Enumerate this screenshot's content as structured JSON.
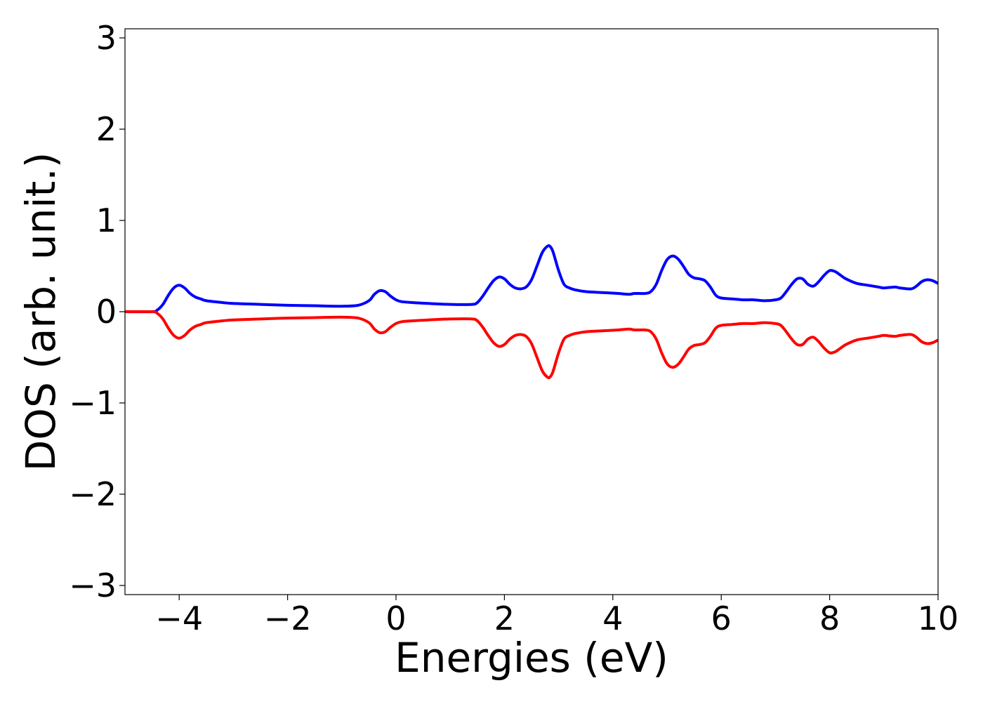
{
  "chart_data": {
    "type": "line",
    "title": "",
    "xlabel": "Energies (eV)",
    "ylabel": "DOS (arb. unit.)",
    "xlim": [
      -5,
      10
    ],
    "ylim": [
      -3.1,
      3.1
    ],
    "xticks": [
      -4,
      -2,
      0,
      2,
      4,
      6,
      8,
      10
    ],
    "xtick_labels": [
      "−4",
      "−2",
      "0",
      "2",
      "4",
      "6",
      "8",
      "10"
    ],
    "yticks": [
      -3,
      -2,
      -1,
      0,
      1,
      2,
      3
    ],
    "ytick_labels": [
      "−3",
      "−2",
      "−1",
      "0",
      "1",
      "2",
      "3"
    ],
    "grid": false,
    "legend": "none",
    "series": [
      {
        "color": "#0000ff",
        "x": [
          -5.0,
          -4.5,
          -4.4,
          -4.3,
          -4.2,
          -4.1,
          -4.0,
          -3.9,
          -3.8,
          -3.7,
          -3.6,
          -3.5,
          -3.2,
          -3.0,
          -2.5,
          -2.0,
          -1.5,
          -1.0,
          -0.7,
          -0.5,
          -0.4,
          -0.3,
          -0.2,
          -0.1,
          0.0,
          0.1,
          0.3,
          0.6,
          1.0,
          1.4,
          1.5,
          1.6,
          1.7,
          1.8,
          1.9,
          2.0,
          2.1,
          2.2,
          2.3,
          2.4,
          2.5,
          2.6,
          2.7,
          2.8,
          2.85,
          2.9,
          3.0,
          3.1,
          3.2,
          3.3,
          3.5,
          3.8,
          4.1,
          4.3,
          4.4,
          4.6,
          4.7,
          4.8,
          4.9,
          5.0,
          5.1,
          5.2,
          5.3,
          5.4,
          5.5,
          5.6,
          5.7,
          5.8,
          5.9,
          6.0,
          6.2,
          6.4,
          6.6,
          6.8,
          7.0,
          7.1,
          7.2,
          7.3,
          7.4,
          7.5,
          7.6,
          7.7,
          7.8,
          7.9,
          8.0,
          8.1,
          8.2,
          8.3,
          8.5,
          8.7,
          8.9,
          9.0,
          9.2,
          9.3,
          9.5,
          9.6,
          9.7,
          9.8,
          9.9,
          10.0
        ],
        "y": [
          0.0,
          0.0,
          0.02,
          0.08,
          0.18,
          0.26,
          0.29,
          0.26,
          0.2,
          0.16,
          0.14,
          0.12,
          0.1,
          0.09,
          0.08,
          0.07,
          0.065,
          0.06,
          0.07,
          0.12,
          0.19,
          0.23,
          0.22,
          0.17,
          0.13,
          0.11,
          0.1,
          0.09,
          0.08,
          0.08,
          0.1,
          0.17,
          0.26,
          0.34,
          0.38,
          0.36,
          0.3,
          0.26,
          0.25,
          0.27,
          0.35,
          0.5,
          0.65,
          0.72,
          0.71,
          0.65,
          0.45,
          0.3,
          0.26,
          0.24,
          0.22,
          0.21,
          0.2,
          0.19,
          0.2,
          0.2,
          0.22,
          0.3,
          0.45,
          0.57,
          0.61,
          0.58,
          0.5,
          0.41,
          0.37,
          0.36,
          0.34,
          0.27,
          0.18,
          0.15,
          0.14,
          0.13,
          0.13,
          0.12,
          0.13,
          0.15,
          0.22,
          0.3,
          0.36,
          0.36,
          0.3,
          0.28,
          0.33,
          0.4,
          0.45,
          0.44,
          0.4,
          0.36,
          0.31,
          0.29,
          0.27,
          0.26,
          0.27,
          0.26,
          0.25,
          0.28,
          0.33,
          0.35,
          0.34,
          0.31
        ]
      },
      {
        "color": "#ff0000",
        "x": [
          -5.0,
          -4.5,
          -4.4,
          -4.3,
          -4.2,
          -4.1,
          -4.0,
          -3.9,
          -3.8,
          -3.7,
          -3.6,
          -3.5,
          -3.2,
          -3.0,
          -2.5,
          -2.0,
          -1.5,
          -1.0,
          -0.7,
          -0.5,
          -0.4,
          -0.3,
          -0.2,
          -0.1,
          0.0,
          0.1,
          0.3,
          0.6,
          1.0,
          1.4,
          1.5,
          1.6,
          1.7,
          1.8,
          1.9,
          2.0,
          2.1,
          2.2,
          2.3,
          2.4,
          2.5,
          2.6,
          2.7,
          2.8,
          2.85,
          2.9,
          3.0,
          3.1,
          3.2,
          3.3,
          3.5,
          3.8,
          4.1,
          4.3,
          4.4,
          4.6,
          4.7,
          4.8,
          4.9,
          5.0,
          5.1,
          5.2,
          5.3,
          5.4,
          5.5,
          5.6,
          5.7,
          5.8,
          5.9,
          6.0,
          6.2,
          6.4,
          6.6,
          6.8,
          7.0,
          7.1,
          7.2,
          7.3,
          7.4,
          7.5,
          7.6,
          7.7,
          7.8,
          7.9,
          8.0,
          8.1,
          8.2,
          8.3,
          8.5,
          8.7,
          8.9,
          9.0,
          9.2,
          9.3,
          9.5,
          9.6,
          9.7,
          9.8,
          9.9,
          10.0
        ],
        "y": [
          0.0,
          0.0,
          -0.02,
          -0.08,
          -0.18,
          -0.26,
          -0.29,
          -0.26,
          -0.2,
          -0.16,
          -0.14,
          -0.12,
          -0.1,
          -0.09,
          -0.08,
          -0.07,
          -0.065,
          -0.06,
          -0.07,
          -0.12,
          -0.19,
          -0.23,
          -0.22,
          -0.17,
          -0.13,
          -0.11,
          -0.1,
          -0.09,
          -0.08,
          -0.08,
          -0.1,
          -0.17,
          -0.26,
          -0.34,
          -0.38,
          -0.36,
          -0.3,
          -0.26,
          -0.25,
          -0.27,
          -0.35,
          -0.5,
          -0.65,
          -0.72,
          -0.71,
          -0.65,
          -0.45,
          -0.3,
          -0.26,
          -0.24,
          -0.22,
          -0.21,
          -0.2,
          -0.19,
          -0.2,
          -0.2,
          -0.22,
          -0.3,
          -0.45,
          -0.57,
          -0.61,
          -0.58,
          -0.5,
          -0.41,
          -0.37,
          -0.36,
          -0.34,
          -0.27,
          -0.18,
          -0.15,
          -0.14,
          -0.13,
          -0.13,
          -0.12,
          -0.13,
          -0.15,
          -0.22,
          -0.3,
          -0.36,
          -0.36,
          -0.3,
          -0.28,
          -0.33,
          -0.4,
          -0.45,
          -0.44,
          -0.4,
          -0.36,
          -0.31,
          -0.29,
          -0.27,
          -0.26,
          -0.27,
          -0.26,
          -0.25,
          -0.28,
          -0.33,
          -0.35,
          -0.34,
          -0.31
        ]
      }
    ]
  }
}
